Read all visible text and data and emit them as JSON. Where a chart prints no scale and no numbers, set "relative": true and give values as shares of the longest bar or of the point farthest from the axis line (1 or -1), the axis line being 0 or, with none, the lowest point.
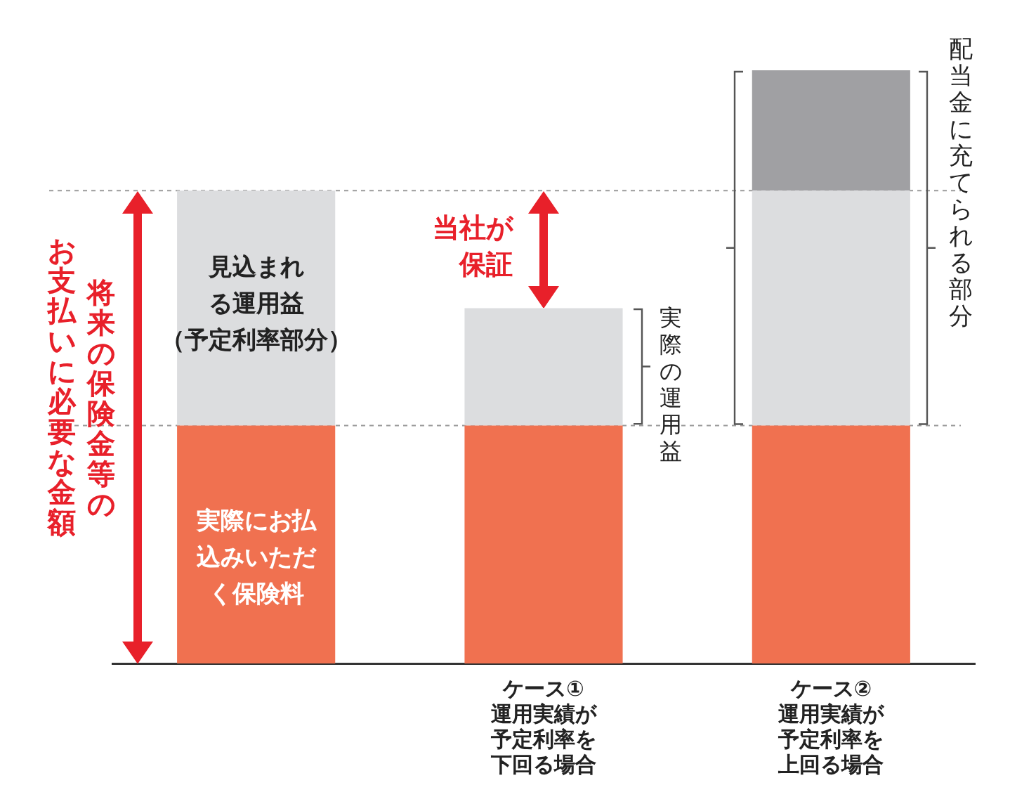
{
  "chart_data": {
    "type": "bar",
    "relative": true,
    "stacked": true,
    "categories": [
      null,
      "ケース①\n運用実績が予定利率を下回る場合",
      "ケース②\n運用実績が予定利率を上回る場合"
    ],
    "series": [
      {
        "name": "実際にお払込みいただく保険料",
        "color": "#f07150",
        "values": [
          0.401,
          0.401,
          0.401
        ]
      },
      {
        "name": "見込まれる運用益（予定利率部分）",
        "color": "#dcdddf",
        "values": [
          0.396,
          0.198,
          0.396
        ]
      },
      {
        "color": "#a0a0a3",
        "values": [
          null,
          null,
          0.203
        ]
      }
    ],
    "ref_lines": [
      {
        "axis": "y",
        "value": 0.401,
        "line_style": "dashed",
        "color": "#9a9a9a"
      },
      {
        "axis": "y",
        "value": 0.797,
        "line_style": "dashed",
        "color": "#9a9a9a"
      }
    ],
    "annotations": [
      "将来の保険金等の",
      "お支払いに必要な金額",
      "当社が保証",
      "実際の運用益",
      "配当金に充てられる部分"
    ]
  }
}
